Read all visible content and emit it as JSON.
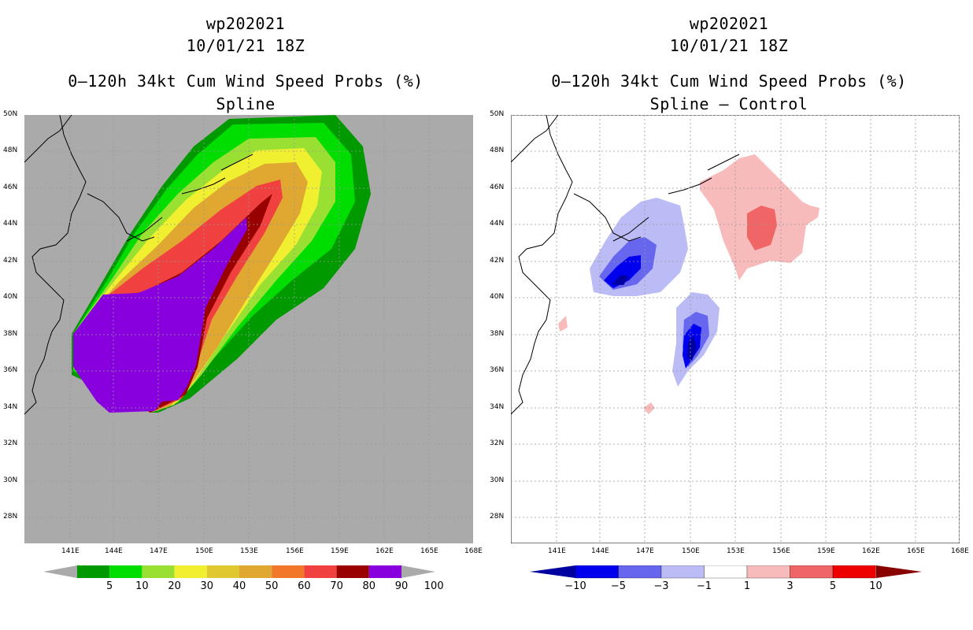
{
  "left": {
    "storm_id": "wp202021",
    "datetime": "10/01/21 18Z",
    "title": "0–120h 34kt Cum Wind Speed Probs (%)",
    "subtitle": "Spline",
    "colorbar": {
      "colors": [
        "#009900",
        "#00dd00",
        "#99e033",
        "#f0f030",
        "#e0c830",
        "#e0a830",
        "#f07828",
        "#f04040",
        "#990000",
        "#8800dd"
      ],
      "labels": [
        "5",
        "10",
        "20",
        "30",
        "40",
        "50",
        "60",
        "70",
        "80",
        "90",
        "100"
      ]
    }
  },
  "right": {
    "storm_id": "wp202021",
    "datetime": "10/01/21 18Z",
    "title": "0–120h 34kt Cum Wind Speed Probs (%)",
    "subtitle": "Spline – Control",
    "colorbar": {
      "colors": [
        "#0000a0",
        "#0000ee",
        "#6666ee",
        "#bbbbf5",
        "#ffffff",
        "#f8bbbb",
        "#f06666",
        "#ee0000",
        "#880000"
      ],
      "labels": [
        "−10",
        "−5",
        "−3",
        "−1",
        "1",
        "3",
        "5",
        "10"
      ]
    }
  },
  "axes": {
    "lon_labels": [
      "141E",
      "144E",
      "147E",
      "150E",
      "153E",
      "156E",
      "159E",
      "162E",
      "165E",
      "168E"
    ],
    "lat_labels": [
      "50N",
      "48N",
      "46N",
      "44N",
      "42N",
      "40N",
      "38N",
      "36N",
      "34N",
      "32N",
      "30N",
      "28N"
    ]
  },
  "colors": {
    "land_background": "#aaaaaa",
    "grid": "#999999"
  }
}
